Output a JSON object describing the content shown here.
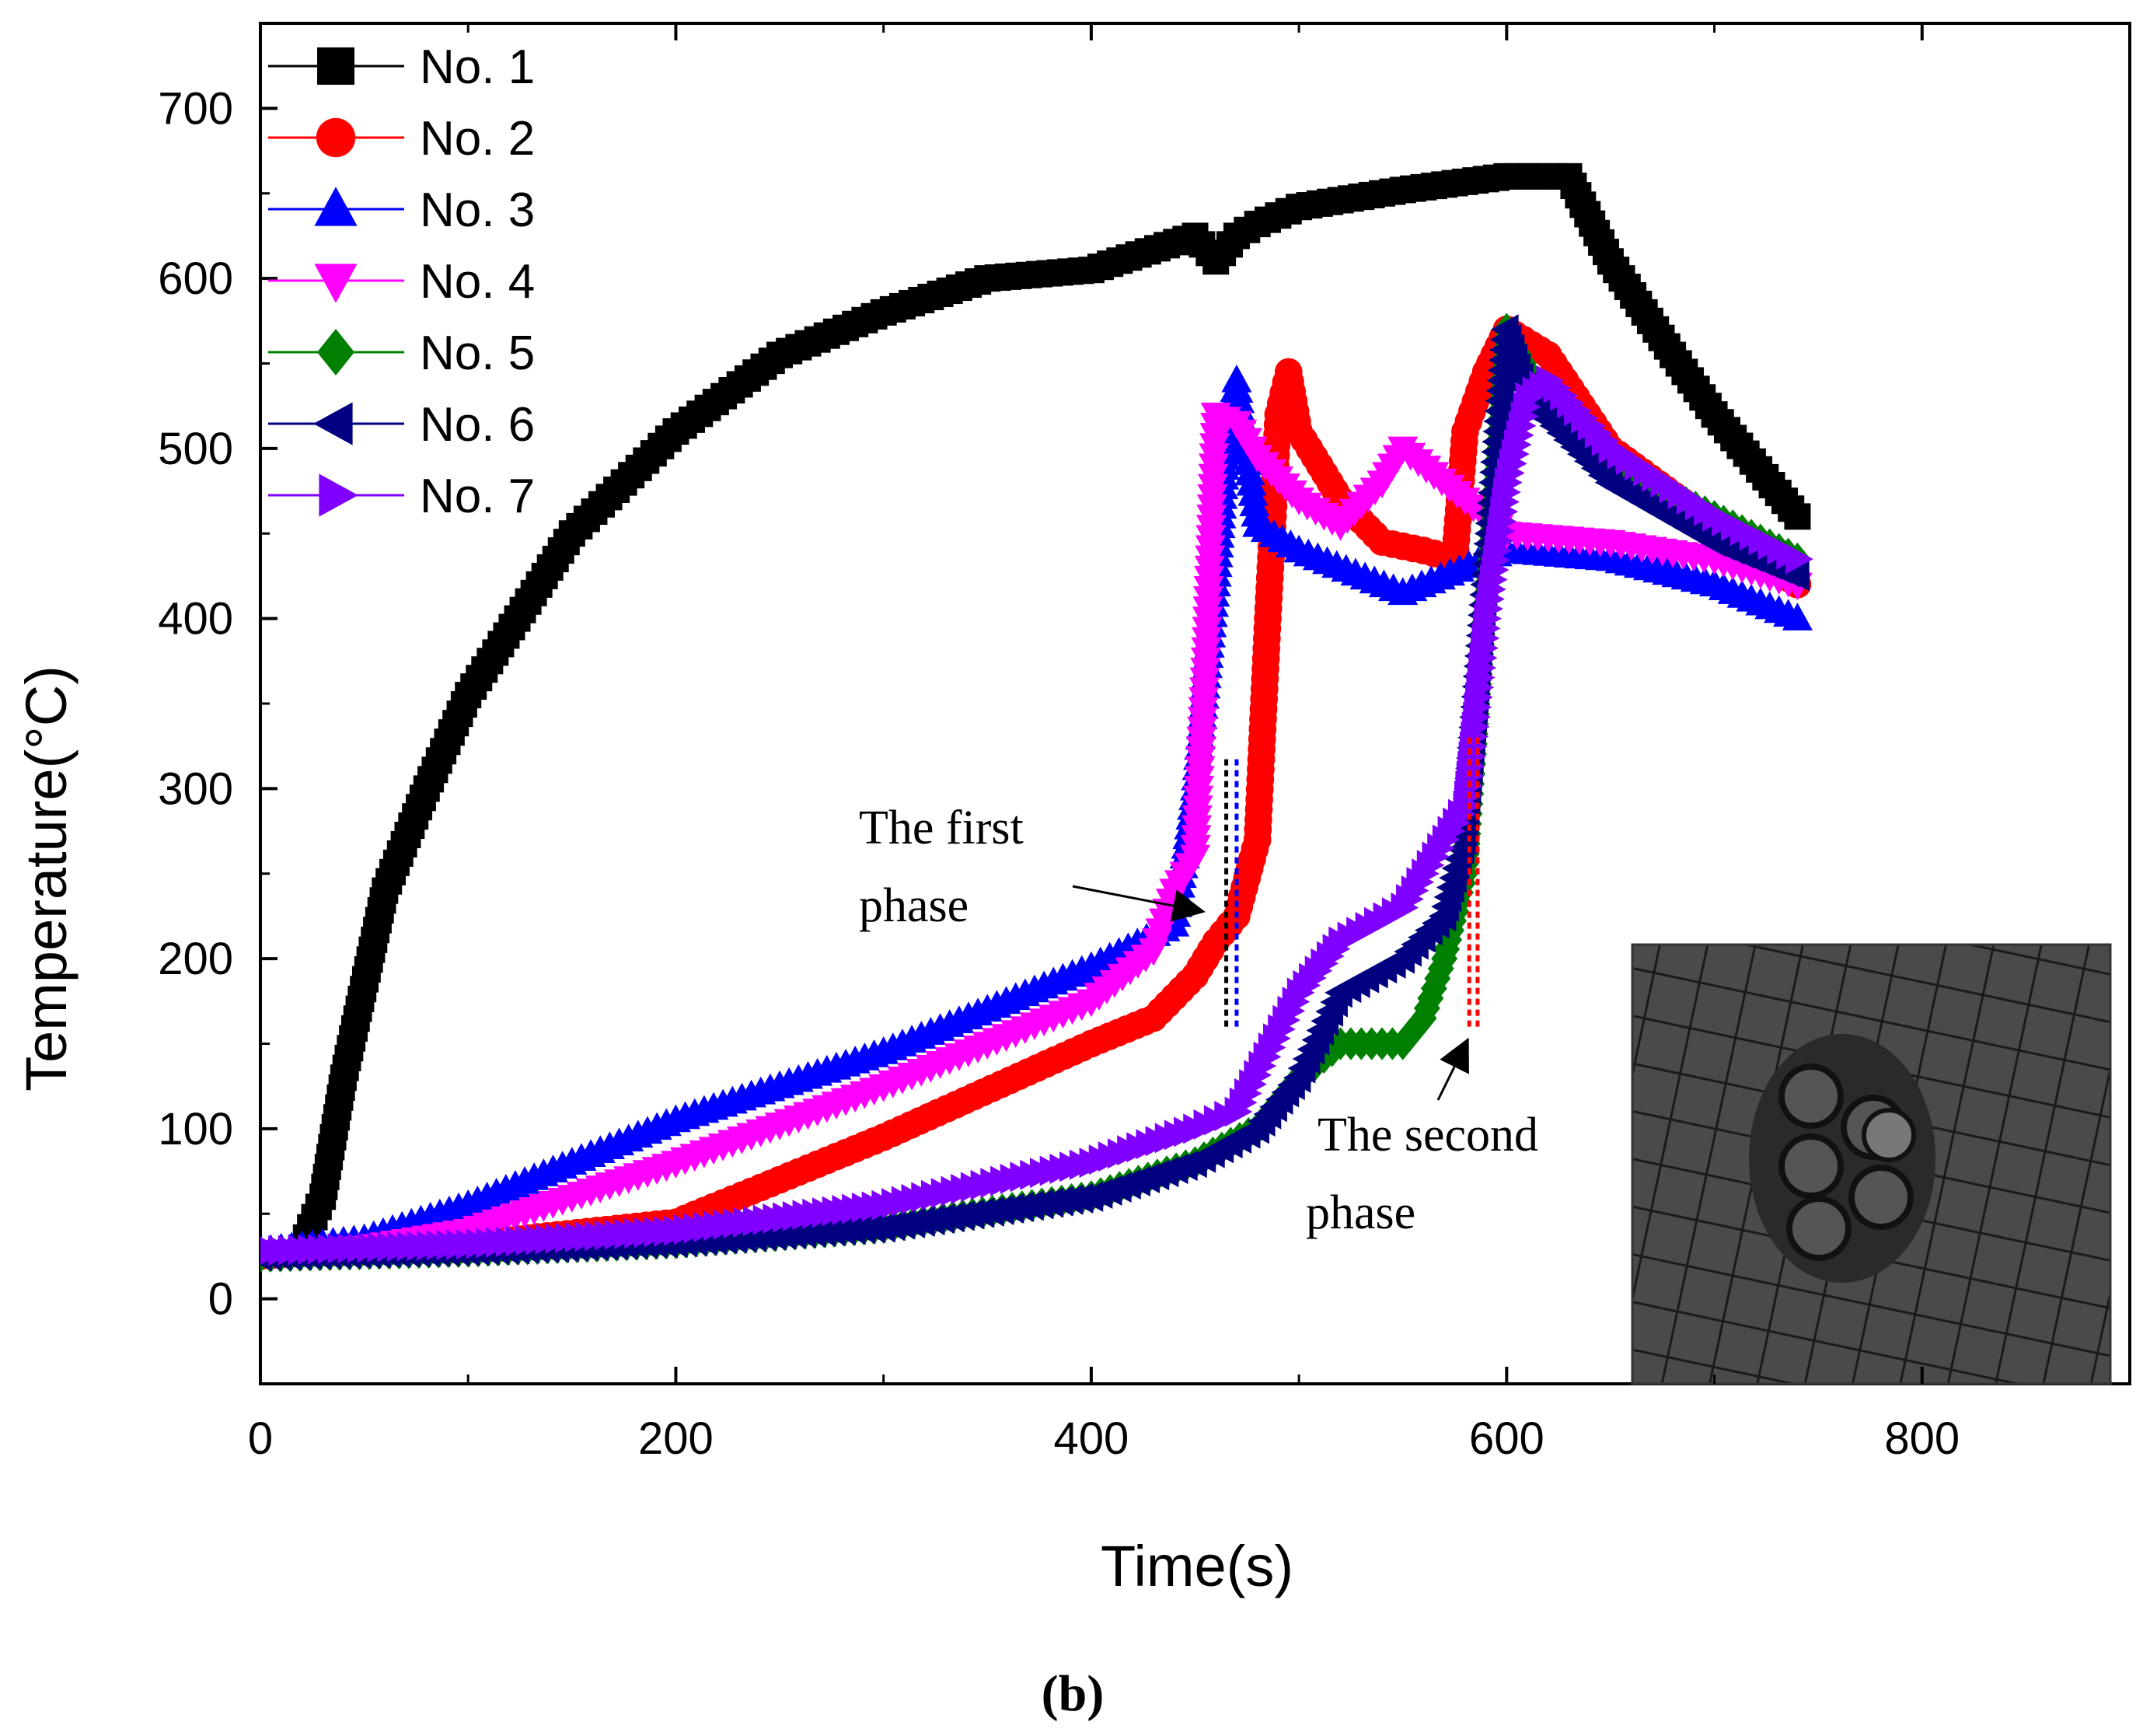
{
  "chart_data": {
    "type": "line",
    "title": "",
    "xlabel": "Time(s)",
    "ylabel": "Temperature(°C)",
    "xlim": [
      0,
      900
    ],
    "ylim": [
      -50,
      750
    ],
    "xticks": [
      0,
      200,
      400,
      600,
      800
    ],
    "yticks": [
      0,
      100,
      200,
      300,
      400,
      500,
      600,
      700
    ],
    "legend_position": "top-left",
    "caption": "(b)",
    "colors": {
      "No. 1": "#000000",
      "No. 2": "#ff0000",
      "No. 3": "#0000ff",
      "No. 4": "#ff00ff",
      "No. 5": "#008000",
      "No. 6": "#000080",
      "No. 7": "#8000ff"
    },
    "series": [
      {
        "name": "No. 1",
        "marker": "square",
        "x": [
          20,
          30,
          40,
          60,
          80,
          100,
          150,
          200,
          250,
          300,
          350,
          400,
          450,
          460,
          470,
          480,
          500,
          550,
          600,
          630,
          650,
          680,
          700,
          740
        ],
        "y": [
          30,
          60,
          130,
          240,
          300,
          355,
          450,
          510,
          555,
          580,
          600,
          605,
          625,
          610,
          625,
          632,
          642,
          652,
          660,
          660,
          610,
          555,
          520,
          460
        ]
      },
      {
        "name": "No. 2",
        "marker": "circle",
        "x": [
          0,
          50,
          100,
          200,
          300,
          400,
          430,
          450,
          460,
          470,
          480,
          485,
          490,
          495,
          500,
          520,
          540,
          560,
          575,
          580,
          590,
          600,
          620,
          650,
          700,
          740
        ],
        "y": [
          25,
          30,
          32,
          45,
          95,
          150,
          165,
          190,
          210,
          225,
          270,
          400,
          520,
          545,
          510,
          470,
          445,
          440,
          435,
          510,
          545,
          570,
          555,
          500,
          455,
          420
        ]
      },
      {
        "name": "No. 3",
        "marker": "triangle-up",
        "x": [
          0,
          50,
          100,
          200,
          300,
          400,
          440,
          450,
          460,
          465,
          470,
          480,
          500,
          550,
          600,
          650,
          700,
          740
        ],
        "y": [
          28,
          35,
          55,
          105,
          145,
          195,
          220,
          300,
          420,
          500,
          540,
          455,
          440,
          415,
          440,
          435,
          420,
          400
        ]
      },
      {
        "name": "No. 4",
        "marker": "triangle-down",
        "x": [
          0,
          50,
          100,
          200,
          300,
          400,
          430,
          440,
          450,
          455,
          460,
          470,
          480,
          500,
          520,
          540,
          550,
          580,
          600,
          650,
          700,
          740
        ],
        "y": [
          25,
          30,
          40,
          80,
          125,
          175,
          205,
          240,
          260,
          370,
          520,
          515,
          495,
          470,
          455,
          480,
          500,
          470,
          450,
          445,
          435,
          420
        ]
      },
      {
        "name": "No. 5",
        "marker": "diamond",
        "x": [
          0,
          100,
          200,
          300,
          400,
          450,
          480,
          500,
          520,
          540,
          550,
          560,
          570,
          580,
          590,
          600,
          610,
          650,
          700,
          740
        ],
        "y": [
          25,
          28,
          33,
          42,
          60,
          80,
          100,
          130,
          150,
          150,
          150,
          165,
          200,
          250,
          420,
          570,
          545,
          490,
          460,
          435
        ]
      },
      {
        "name": "No. 6",
        "marker": "triangle-left",
        "x": [
          0,
          100,
          200,
          300,
          400,
          450,
          480,
          500,
          520,
          550,
          570,
          580,
          590,
          600,
          610,
          650,
          700,
          740
        ],
        "y": [
          25,
          28,
          33,
          42,
          60,
          80,
          100,
          130,
          180,
          200,
          225,
          270,
          420,
          570,
          530,
          480,
          445,
          425
        ]
      },
      {
        "name": "No. 7",
        "marker": "triangle-right",
        "x": [
          0,
          100,
          200,
          300,
          400,
          450,
          470,
          500,
          520,
          550,
          580,
          590,
          600,
          610,
          620,
          650,
          700,
          740
        ],
        "y": [
          28,
          32,
          40,
          55,
          80,
          100,
          110,
          180,
          210,
          230,
          290,
          400,
          480,
          530,
          540,
          500,
          460,
          435
        ]
      }
    ],
    "markers": {
      "first_phase": {
        "x": [
          465,
          470
        ],
        "y": [
          160,
          320
        ],
        "colors": [
          "#000000",
          "#0000ff"
        ]
      },
      "second_phase": {
        "x": [
          582,
          586
        ],
        "y": [
          160,
          330
        ],
        "colors": [
          "#ff0000",
          "#ff0000"
        ]
      }
    },
    "annotations": [
      {
        "id": "first",
        "lines": [
          "The  first",
          "phase"
        ],
        "arrow_to": [
          459,
          237
        ]
      },
      {
        "id": "second",
        "lines": [
          "The  second",
          "phase"
        ],
        "arrow_to": [
          583,
          160
        ]
      }
    ]
  },
  "inset": {
    "alt": "photo-inset"
  }
}
